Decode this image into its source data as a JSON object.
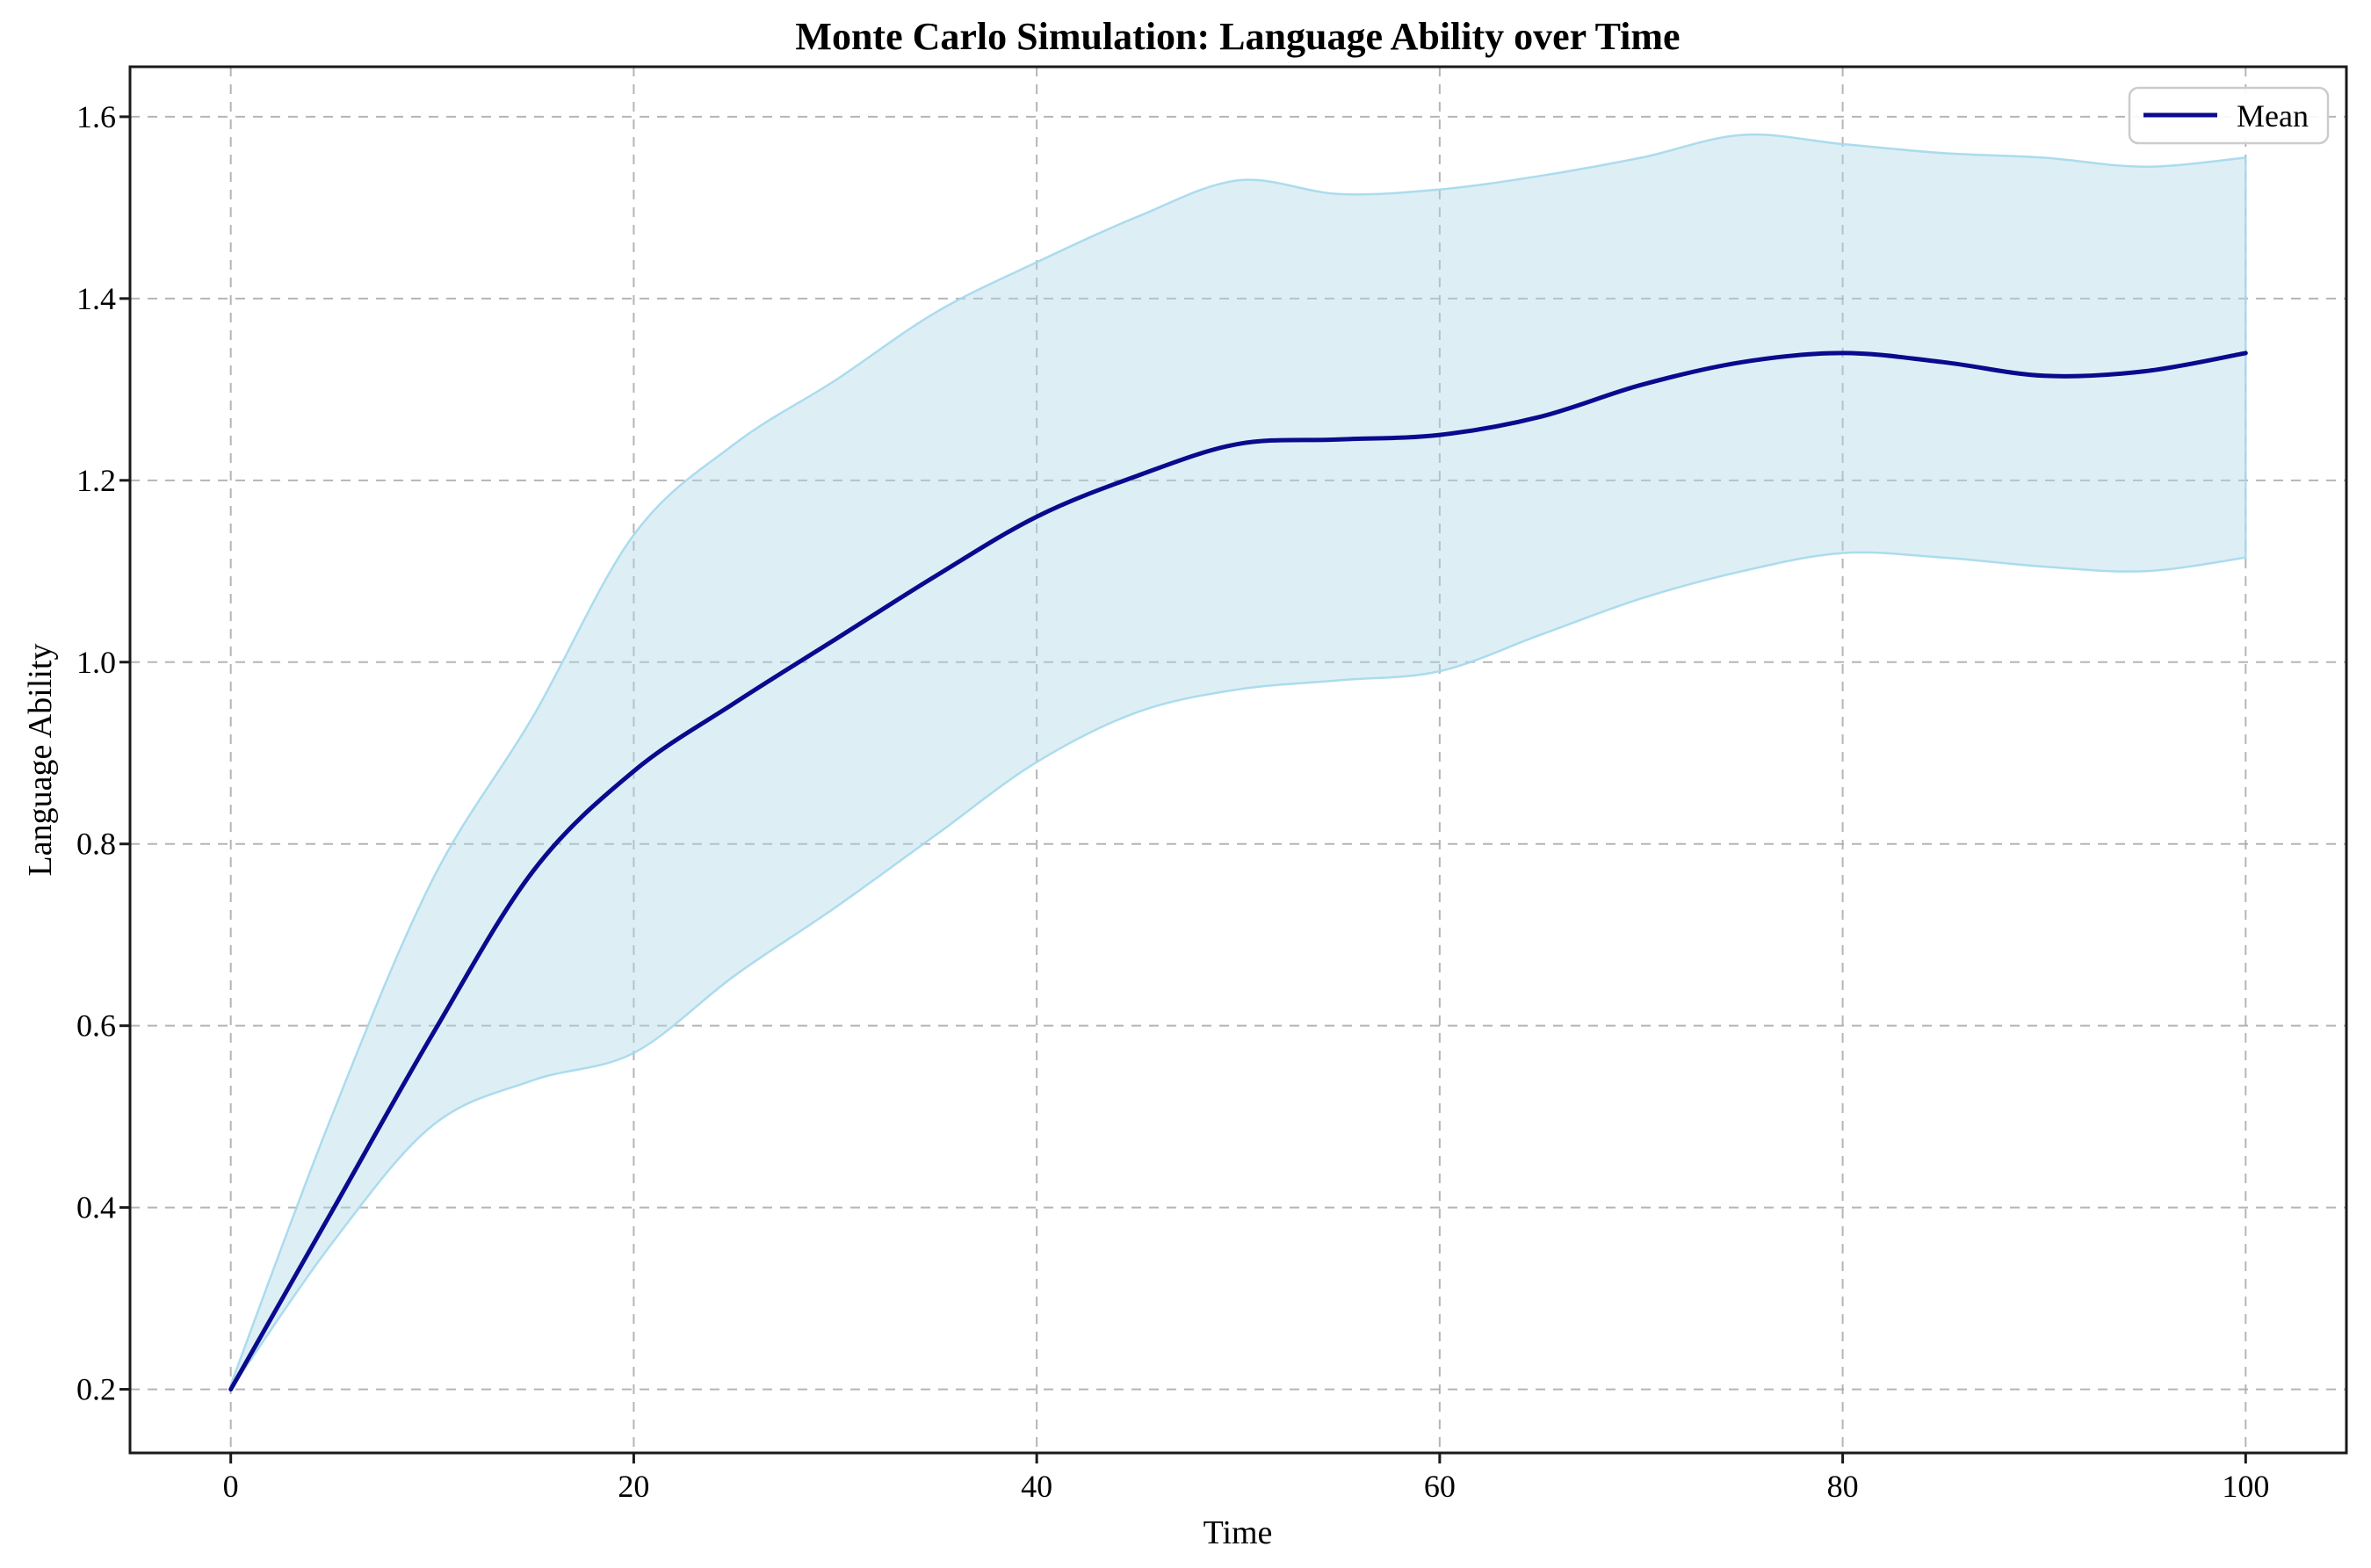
{
  "figure": {
    "background": "#ffffff"
  },
  "chart_data": {
    "type": "line",
    "title": "Monte Carlo Simulation: Language Ability over Time",
    "xlabel": "Time",
    "ylabel": "Language Ability",
    "legend": {
      "entries": [
        "Mean"
      ],
      "position": "upper right"
    },
    "axes": {
      "xlim": [
        -5,
        105
      ],
      "ylim": [
        0.13,
        1.655
      ],
      "xticks": [
        0,
        20,
        40,
        60,
        80,
        100
      ],
      "yticks": [
        0.2,
        0.4,
        0.6,
        0.8,
        1.0,
        1.2,
        1.4,
        1.6
      ],
      "grid": true,
      "grid_style": "dashed"
    },
    "x": [
      0,
      5,
      10,
      15,
      20,
      25,
      30,
      35,
      40,
      45,
      50,
      55,
      60,
      65,
      70,
      75,
      80,
      85,
      90,
      95,
      100
    ],
    "series": [
      {
        "name": "Mean",
        "role": "mean-line",
        "values": [
          0.2,
          0.395,
          0.59,
          0.77,
          0.88,
          0.955,
          1.025,
          1.095,
          1.16,
          1.205,
          1.24,
          1.245,
          1.25,
          1.27,
          1.305,
          1.33,
          1.34,
          1.33,
          1.315,
          1.32,
          1.34
        ]
      },
      {
        "name": "Confidence band upper",
        "role": "band-upper",
        "values": [
          0.205,
          0.5,
          0.76,
          0.94,
          1.14,
          1.24,
          1.31,
          1.385,
          1.44,
          1.49,
          1.53,
          1.515,
          1.52,
          1.535,
          1.555,
          1.58,
          1.57,
          1.56,
          1.555,
          1.545,
          1.555
        ]
      },
      {
        "name": "Confidence band lower",
        "role": "band-lower",
        "values": [
          0.2,
          0.36,
          0.49,
          0.54,
          0.57,
          0.655,
          0.73,
          0.81,
          0.89,
          0.945,
          0.97,
          0.98,
          0.99,
          1.03,
          1.07,
          1.1,
          1.12,
          1.115,
          1.105,
          1.1,
          1.115
        ]
      }
    ],
    "colors": {
      "mean_line": "#0a0a8e",
      "band_fill": "#add8e6",
      "band_edge": "#a4d8ec",
      "grid": "#a8a8a8",
      "spine": "#1a1a1a",
      "text": "#000000",
      "legend_border": "#cccccc",
      "legend_background": "#ffffff"
    }
  }
}
